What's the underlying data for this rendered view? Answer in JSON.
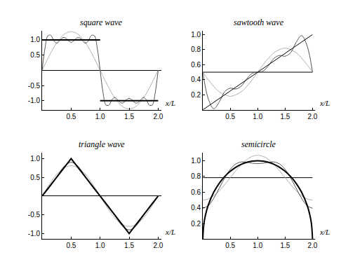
{
  "chart_data": [
    {
      "type": "line",
      "title": "square wave",
      "xlabel": "x/L",
      "xlim": [
        0,
        2.05
      ],
      "ylim": [
        -1.3,
        1.3
      ],
      "xticks": [
        0.5,
        {
          "value": 1,
          "label": "1.0"
        },
        1.5,
        {
          "value": 2,
          "label": "2.0"
        }
      ],
      "yticks": [
        {
          "value": 1,
          "label": "1.0"
        },
        0.5,
        -0.5,
        {
          "value": -1,
          "label": "-1.0"
        }
      ],
      "series": [
        {
          "color": "#b0b0b0",
          "line_style": "solid",
          "x": [
            0,
            0.1,
            0.2,
            0.3,
            0.4,
            0.5,
            0.6,
            0.7,
            0.8,
            0.9,
            1.0,
            1.1,
            1.2,
            1.3,
            1.4,
            1.5,
            1.6,
            1.7,
            1.8,
            1.9,
            2.0
          ],
          "values": [
            0,
            0.39,
            0.75,
            1.03,
            1.21,
            1.27,
            1.21,
            1.03,
            0.75,
            0.39,
            0,
            -0.39,
            -0.75,
            -1.03,
            -1.21,
            -1.27,
            -1.21,
            -1.03,
            -0.75,
            -0.39,
            0
          ]
        },
        {
          "color": "#555555",
          "line_style": "solid",
          "x": [
            0,
            0.05,
            0.1,
            0.15,
            0.2,
            0.25,
            0.3,
            0.35,
            0.4,
            0.45,
            0.5,
            0.55,
            0.6,
            0.65,
            0.7,
            0.75,
            0.8,
            0.85,
            0.9,
            0.95,
            1.0,
            1.05,
            1.1,
            1.15,
            1.2,
            1.25,
            1.3,
            1.35,
            1.4,
            1.45,
            1.5,
            1.55,
            1.6,
            1.65,
            1.7,
            1.75,
            1.8,
            1.85,
            1.9,
            1.95,
            2.0
          ],
          "values": [
            0,
            0.734,
            1.139,
            1.149,
            0.979,
            0.892,
            0.963,
            1.068,
            1.068,
            0.977,
            0.922,
            0.977,
            1.068,
            1.068,
            0.963,
            0.892,
            0.979,
            1.149,
            1.139,
            0.734,
            0,
            -0.734,
            -1.139,
            -1.149,
            -0.979,
            -0.892,
            -0.963,
            -1.068,
            -1.068,
            -0.977,
            -0.922,
            -0.977,
            -1.068,
            -1.068,
            -0.963,
            -0.892,
            -0.979,
            -1.149,
            -1.139,
            -0.734,
            0
          ]
        },
        {
          "color": "#000000",
          "line_style": "solid",
          "x": [
            0,
            1,
            1,
            1,
            2
          ],
          "values": [
            1,
            1,
            null,
            -1,
            -1
          ]
        }
      ]
    },
    {
      "type": "line",
      "title": "sawtooth wave",
      "xlabel": "x/L",
      "xlim": [
        0,
        2.05
      ],
      "ylim": [
        0,
        1.05
      ],
      "xticks": [
        0.5,
        {
          "value": 1,
          "label": "1.0"
        },
        1.5,
        {
          "value": 2,
          "label": "2.0"
        }
      ],
      "yticks": [
        0.2,
        0.4,
        0.6,
        0.8,
        {
          "value": 1,
          "label": "1.0"
        }
      ],
      "series": [
        {
          "color": "#000000",
          "line_style": "solid",
          "x": [
            0,
            2
          ],
          "values": [
            0.5,
            0.5
          ]
        },
        {
          "color": "#b0b0b0",
          "line_style": "solid",
          "x": [
            0,
            0.1,
            0.2,
            0.3,
            0.4,
            0.5,
            0.6,
            0.7,
            0.8,
            0.9,
            1.0,
            1.1,
            1.2,
            1.3,
            1.4,
            1.5,
            1.6,
            1.7,
            1.8,
            1.9,
            2.0
          ],
          "values": [
            0.5,
            0.4,
            0.31,
            0.24,
            0.2,
            0.18,
            0.2,
            0.24,
            0.31,
            0.4,
            0.5,
            0.6,
            0.69,
            0.76,
            0.8,
            0.82,
            0.8,
            0.76,
            0.69,
            0.6,
            0.5
          ]
        },
        {
          "color": "#555555",
          "line_style": "solid",
          "x": [
            0,
            0.1,
            0.2,
            0.3,
            0.4,
            0.5,
            0.6,
            0.7,
            0.8,
            0.9,
            1.0,
            1.1,
            1.2,
            1.3,
            1.4,
            1.5,
            1.6,
            1.7,
            1.8,
            1.9,
            2.0
          ],
          "values": [
            0.5,
            0.147,
            0.014,
            0.105,
            0.242,
            0.288,
            0.277,
            0.314,
            0.41,
            0.485,
            0.5,
            0.515,
            0.59,
            0.686,
            0.723,
            0.712,
            0.758,
            0.895,
            0.986,
            0.853,
            0.5
          ]
        },
        {
          "color": "#000000",
          "line_style": "solid",
          "x": [
            0,
            2
          ],
          "values": [
            0,
            1
          ]
        }
      ]
    },
    {
      "type": "line",
      "title": "triangle wave",
      "xlabel": "x/L",
      "xlim": [
        0,
        2.05
      ],
      "ylim": [
        -1.15,
        1.15
      ],
      "xticks": [
        0.5,
        {
          "value": 1,
          "label": "1.0"
        },
        1.5,
        {
          "value": 2,
          "label": "2.0"
        }
      ],
      "yticks": [
        {
          "value": 1,
          "label": "1.0"
        },
        0.5,
        -0.5,
        {
          "value": -1,
          "label": "-1.0"
        }
      ],
      "series": [
        {
          "color": "#b0b0b0",
          "line_style": "solid",
          "x": [
            0,
            0.1,
            0.2,
            0.3,
            0.4,
            0.5,
            0.6,
            0.7,
            0.8,
            0.9,
            1.0,
            1.1,
            1.2,
            1.3,
            1.4,
            1.5,
            1.6,
            1.7,
            1.8,
            1.9,
            2.0
          ],
          "values": [
            0,
            0.25,
            0.48,
            0.66,
            0.77,
            0.81,
            0.77,
            0.66,
            0.48,
            0.25,
            0,
            -0.25,
            -0.48,
            -0.66,
            -0.77,
            -0.81,
            -0.77,
            -0.66,
            -0.48,
            -0.25,
            0
          ]
        },
        {
          "color": "#555555",
          "line_style": "solid",
          "x": [
            0,
            0.1,
            0.2,
            0.3,
            0.4,
            0.5,
            0.6,
            0.7,
            0.8,
            0.9,
            1.0,
            1.1,
            1.2,
            1.3,
            1.4,
            1.5,
            1.6,
            1.7,
            1.8,
            1.9,
            2.0
          ],
          "values": [
            0,
            0.178,
            0.391,
            0.628,
            0.824,
            0.901,
            0.824,
            0.628,
            0.391,
            0.178,
            0,
            -0.178,
            -0.391,
            -0.628,
            -0.824,
            -0.901,
            -0.824,
            -0.628,
            -0.391,
            -0.178,
            0
          ]
        },
        {
          "color": "#000000",
          "line_style": "solid",
          "x": [
            0,
            0.5,
            1,
            1.5,
            2
          ],
          "values": [
            0,
            1,
            0,
            -1,
            0
          ]
        }
      ]
    },
    {
      "type": "line",
      "title": "semicircle",
      "xlabel": "x/L",
      "xlim": [
        0,
        2.05
      ],
      "ylim": [
        0,
        1.1
      ],
      "xticks": [
        0.5,
        {
          "value": 1,
          "label": "1.0"
        },
        1.5,
        {
          "value": 2,
          "label": "2.0"
        }
      ],
      "yticks": [
        0.2,
        0.4,
        0.6,
        0.8,
        {
          "value": 1,
          "label": "1.0"
        }
      ],
      "series": [
        {
          "color": "#000000",
          "line_style": "solid",
          "x": [
            0,
            2
          ],
          "values": [
            0.785,
            0.785
          ]
        },
        {
          "color": "#b0b0b0",
          "line_style": "solid",
          "x": [
            0,
            0.1,
            0.2,
            0.3,
            0.4,
            0.5,
            0.6,
            0.7,
            0.8,
            0.9,
            1.0,
            1.1,
            1.2,
            1.3,
            1.4,
            1.5,
            1.6,
            1.7,
            1.8,
            1.9,
            2.0
          ],
          "values": [
            0.5,
            0.514,
            0.555,
            0.618,
            0.697,
            0.785,
            0.873,
            0.952,
            1.015,
            1.056,
            1.07,
            1.056,
            1.015,
            0.952,
            0.873,
            0.785,
            0.697,
            0.618,
            0.555,
            0.514,
            0.5
          ]
        },
        {
          "color": "#555555",
          "line_style": "solid",
          "x": [
            0,
            0.1,
            0.2,
            0.3,
            0.4,
            0.5,
            0.6,
            0.7,
            0.8,
            0.9,
            1.0,
            1.1,
            1.2,
            1.3,
            1.4,
            1.5,
            1.6,
            1.7,
            1.8,
            1.9,
            2.0
          ],
          "values": [
            0.394,
            0.428,
            0.522,
            0.651,
            0.783,
            0.891,
            0.959,
            0.985,
            0.982,
            0.97,
            0.964,
            0.97,
            0.982,
            0.985,
            0.959,
            0.891,
            0.783,
            0.651,
            0.522,
            0.428,
            0.394
          ]
        },
        {
          "color": "#000000",
          "line_style": "solid",
          "x": [
            0,
            0.02,
            0.05,
            0.1,
            0.2,
            0.3,
            0.4,
            0.5,
            0.6,
            0.7,
            0.8,
            0.9,
            1.0,
            1.1,
            1.2,
            1.3,
            1.4,
            1.5,
            1.6,
            1.7,
            1.8,
            1.9,
            1.95,
            1.98,
            2.0
          ],
          "values": [
            0,
            0.199,
            0.312,
            0.436,
            0.6,
            0.714,
            0.8,
            0.866,
            0.917,
            0.954,
            0.98,
            0.995,
            1,
            0.995,
            0.98,
            0.954,
            0.917,
            0.866,
            0.8,
            0.714,
            0.6,
            0.436,
            0.312,
            0.199,
            0
          ]
        }
      ]
    }
  ]
}
